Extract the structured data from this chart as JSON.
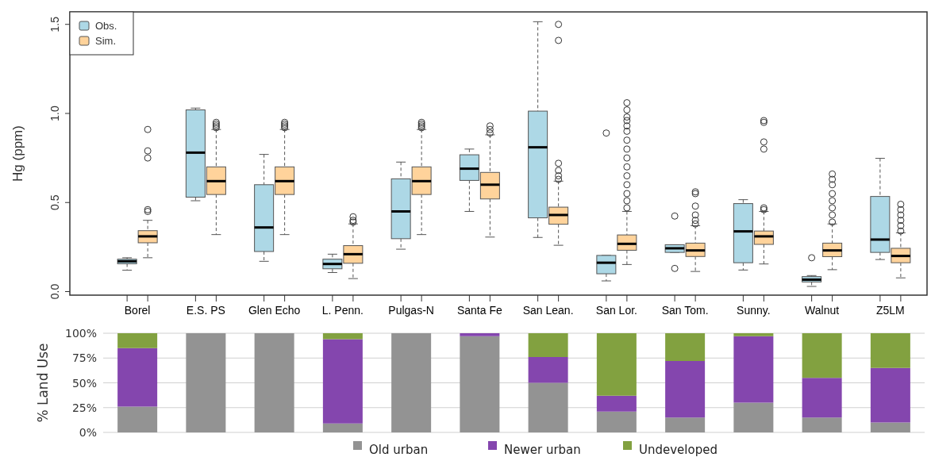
{
  "chart_data": [
    {
      "type": "box",
      "ylabel": "Hg (ppm)",
      "categories": [
        "Borel",
        "E.S. PS",
        "Glen Echo",
        "L. Penn.",
        "Pulgas-N",
        "Santa Fe",
        "San Lean.",
        "San Lor.",
        "San Tom.",
        "Sunny.",
        "Walnut",
        "Z5LM"
      ],
      "ylim": [
        -0.02,
        1.57
      ],
      "yticks": [
        {
          "value": 0,
          "label": "0.0"
        },
        {
          "value": 0.5,
          "label": "0.5"
        },
        {
          "value": 1,
          "label": "1.0"
        },
        {
          "value": 1.5,
          "label": "1.5"
        }
      ],
      "legend": "top left",
      "grid": false,
      "series": [
        {
          "name": "Obs.",
          "color": "#add8e6",
          "boxes": [
            {
              "low": 0.12,
              "q1": 0.156,
              "median": 0.17,
              "q3": 0.182,
              "high": 0.19
            },
            {
              "low": 0.51,
              "q1": 0.53,
              "median": 0.78,
              "q3": 1.02,
              "high": 1.03
            },
            {
              "low": 0.17,
              "q1": 0.225,
              "median": 0.36,
              "q3": 0.6,
              "high": 0.77
            },
            {
              "low": 0.107,
              "q1": 0.128,
              "median": 0.155,
              "q3": 0.182,
              "high": 0.21
            },
            {
              "low": 0.238,
              "q1": 0.297,
              "median": 0.45,
              "q3": 0.633,
              "high": 0.727
            },
            {
              "low": 0.45,
              "q1": 0.624,
              "median": 0.69,
              "q3": 0.768,
              "high": 0.8
            },
            {
              "low": 0.304,
              "q1": 0.414,
              "median": 0.81,
              "q3": 1.013,
              "high": 1.515
            },
            {
              "low": 0.06,
              "q1": 0.1,
              "median": 0.162,
              "q3": 0.203,
              "high": 0.203,
              "outliers": [
                0.89
              ]
            },
            {
              "low": 0.22,
              "q1": 0.22,
              "median": 0.243,
              "q3": 0.263,
              "high": 0.263,
              "outliers": [
                0.13,
                0.424
              ]
            },
            {
              "low": 0.121,
              "q1": 0.162,
              "median": 0.338,
              "q3": 0.494,
              "high": 0.516
            },
            {
              "low": 0.029,
              "q1": 0.054,
              "median": 0.067,
              "q3": 0.084,
              "high": 0.09,
              "outliers": [
                0.19
              ]
            },
            {
              "low": 0.18,
              "q1": 0.22,
              "median": 0.292,
              "q3": 0.534,
              "high": 0.748
            }
          ]
        },
        {
          "name": "Sim.",
          "color": "#ffd39b",
          "boxes": [
            {
              "low": 0.19,
              "q1": 0.274,
              "median": 0.31,
              "q3": 0.342,
              "high": 0.4,
              "outliers": [
                0.45,
                0.46,
                0.75,
                0.79,
                0.91
              ]
            },
            {
              "low": 0.32,
              "q1": 0.545,
              "median": 0.62,
              "q3": 0.7,
              "high": 0.91,
              "outliers": [
                0.92,
                0.93,
                0.94,
                0.95
              ]
            },
            {
              "low": 0.32,
              "q1": 0.545,
              "median": 0.62,
              "q3": 0.7,
              "high": 0.91,
              "outliers": [
                0.92,
                0.93,
                0.94,
                0.95
              ]
            },
            {
              "low": 0.073,
              "q1": 0.159,
              "median": 0.21,
              "q3": 0.258,
              "high": 0.38,
              "outliers": [
                0.39,
                0.4,
                0.42
              ]
            },
            {
              "low": 0.32,
              "q1": 0.545,
              "median": 0.62,
              "q3": 0.7,
              "high": 0.91,
              "outliers": [
                0.92,
                0.93,
                0.94,
                0.95
              ]
            },
            {
              "low": 0.306,
              "q1": 0.52,
              "median": 0.6,
              "q3": 0.669,
              "high": 0.88,
              "outliers": [
                0.89,
                0.91,
                0.93
              ]
            },
            {
              "low": 0.26,
              "q1": 0.378,
              "median": 0.43,
              "q3": 0.474,
              "high": 0.62,
              "outliers": [
                0.63,
                0.65,
                0.68,
                0.72,
                1.41,
                1.5
              ]
            },
            {
              "low": 0.152,
              "q1": 0.232,
              "median": 0.268,
              "q3": 0.318,
              "high": 0.45,
              "outliers": [
                0.47,
                0.51,
                0.55,
                0.6,
                0.65,
                0.7,
                0.75,
                0.8,
                0.85,
                0.9,
                0.93,
                0.96,
                0.98,
                1.02,
                1.06
              ]
            },
            {
              "low": 0.113,
              "q1": 0.197,
              "median": 0.231,
              "q3": 0.272,
              "high": 0.37,
              "outliers": [
                0.38,
                0.4,
                0.43,
                0.48,
                0.55,
                0.56
              ]
            },
            {
              "low": 0.155,
              "q1": 0.265,
              "median": 0.31,
              "q3": 0.34,
              "high": 0.45,
              "outliers": [
                0.46,
                0.47,
                0.8,
                0.84,
                0.95,
                0.96
              ]
            },
            {
              "low": 0.123,
              "q1": 0.196,
              "median": 0.231,
              "q3": 0.272,
              "high": 0.38,
              "outliers": [
                0.39,
                0.43,
                0.47,
                0.51,
                0.55,
                0.6,
                0.63,
                0.66
              ]
            },
            {
              "low": 0.077,
              "q1": 0.162,
              "median": 0.2,
              "q3": 0.243,
              "high": 0.33,
              "outliers": [
                0.34,
                0.37,
                0.4,
                0.43,
                0.46,
                0.49
              ]
            }
          ]
        }
      ]
    },
    {
      "type": "bar",
      "stacked": true,
      "ylabel": "% Land Use",
      "categories": [
        null,
        null,
        null,
        null,
        null,
        null,
        null,
        null,
        null,
        null,
        null,
        null
      ],
      "tick_labels": "y",
      "ylim": [
        0,
        100
      ],
      "yticks": [
        {
          "value": 0,
          "label": "0%"
        },
        {
          "value": 25,
          "label": "25%"
        },
        {
          "value": 50,
          "label": "50%"
        },
        {
          "value": 75,
          "label": "75%"
        },
        {
          "value": 100,
          "label": "100%"
        }
      ],
      "grid": "y",
      "legend": "bottom",
      "series": [
        {
          "name": "Old urban",
          "color": "#939393",
          "values": [
            26,
            100,
            100,
            9,
            100,
            97,
            50,
            21,
            15,
            30,
            15,
            10
          ]
        },
        {
          "name": "Newer urban",
          "color": "#8446ae",
          "values": [
            59,
            0,
            0,
            85,
            0,
            3,
            26,
            16,
            57,
            67,
            40,
            55
          ]
        },
        {
          "name": "Undeveloped",
          "color": "#82a140",
          "values": [
            15,
            0,
            0,
            6,
            0,
            0,
            24,
            63,
            28,
            3,
            45,
            35
          ]
        }
      ]
    }
  ]
}
